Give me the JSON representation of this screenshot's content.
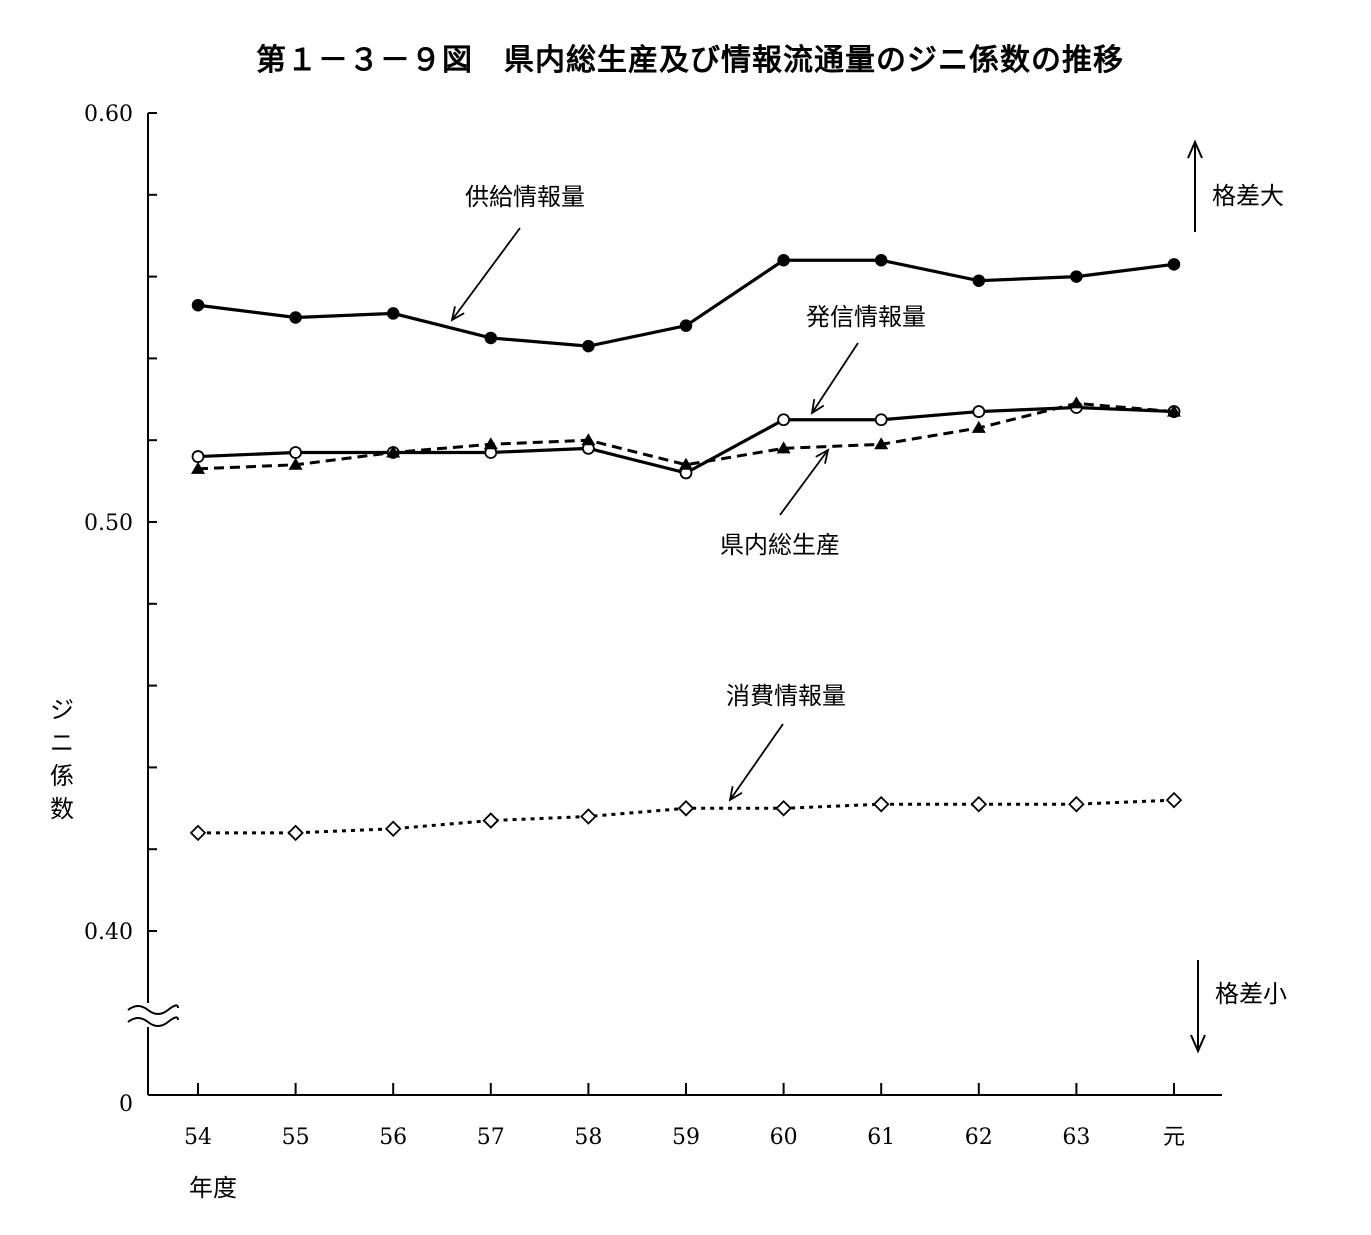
{
  "title": "第１－３－９図　県内総生産及び情報流通量のジニ係数の推移",
  "chart_data": {
    "type": "line",
    "title": "第１－３－９図　県内総生産及び情報流通量のジニ係数の推移",
    "xlabel": "年度",
    "ylabel": "ジニ係数",
    "categories": [
      "54",
      "55",
      "56",
      "57",
      "58",
      "59",
      "60",
      "61",
      "62",
      "63",
      "元"
    ],
    "y_ticks": [
      "0.60",
      "0.50",
      "0.40",
      "0"
    ],
    "ylim": [
      0.38,
      0.6
    ],
    "axis_break": true,
    "grid": false,
    "series": [
      {
        "name": "供給情報量",
        "marker": "filled-circle",
        "line": "solid",
        "values": [
          0.553,
          0.55,
          0.551,
          0.545,
          0.543,
          0.548,
          0.564,
          0.564,
          0.559,
          0.56,
          0.563
        ]
      },
      {
        "name": "発信情報量",
        "marker": "open-circle",
        "line": "solid",
        "values": [
          0.516,
          0.517,
          0.517,
          0.517,
          0.518,
          0.512,
          0.525,
          0.525,
          0.527,
          0.528,
          0.527
        ]
      },
      {
        "name": "県内総生産",
        "marker": "filled-triangle",
        "line": "dashed",
        "values": [
          0.513,
          0.514,
          0.517,
          0.519,
          0.52,
          0.514,
          0.518,
          0.519,
          0.523,
          0.529,
          0.527
        ]
      },
      {
        "name": "消費情報量",
        "marker": "open-diamond",
        "line": "dotted",
        "values": [
          0.424,
          0.424,
          0.425,
          0.427,
          0.428,
          0.43,
          0.43,
          0.431,
          0.431,
          0.431,
          0.432
        ]
      }
    ],
    "annotations": {
      "upper": "格差大",
      "lower": "格差小"
    }
  }
}
